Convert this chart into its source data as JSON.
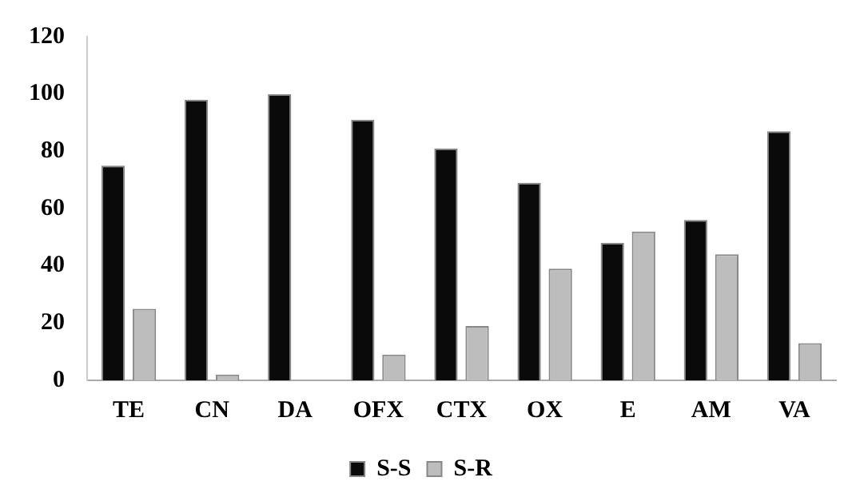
{
  "chart_data": {
    "type": "bar",
    "categories": [
      "TE",
      "CN",
      "DA",
      "OFX",
      "CTX",
      "OX",
      "E",
      "AM",
      "VA"
    ],
    "series": [
      {
        "name": "S-S",
        "color": "#0a0a0a",
        "values": [
          75,
          98,
          100,
          91,
          81,
          69,
          48,
          56,
          87
        ]
      },
      {
        "name": "S-R",
        "color": "#bdbdbd",
        "values": [
          25,
          2,
          0,
          9,
          19,
          39,
          52,
          44,
          13
        ]
      }
    ],
    "ylim": [
      0,
      120
    ],
    "yticks": [
      0,
      20,
      40,
      60,
      80,
      100,
      120
    ],
    "grid": false,
    "legend": "bottom"
  }
}
